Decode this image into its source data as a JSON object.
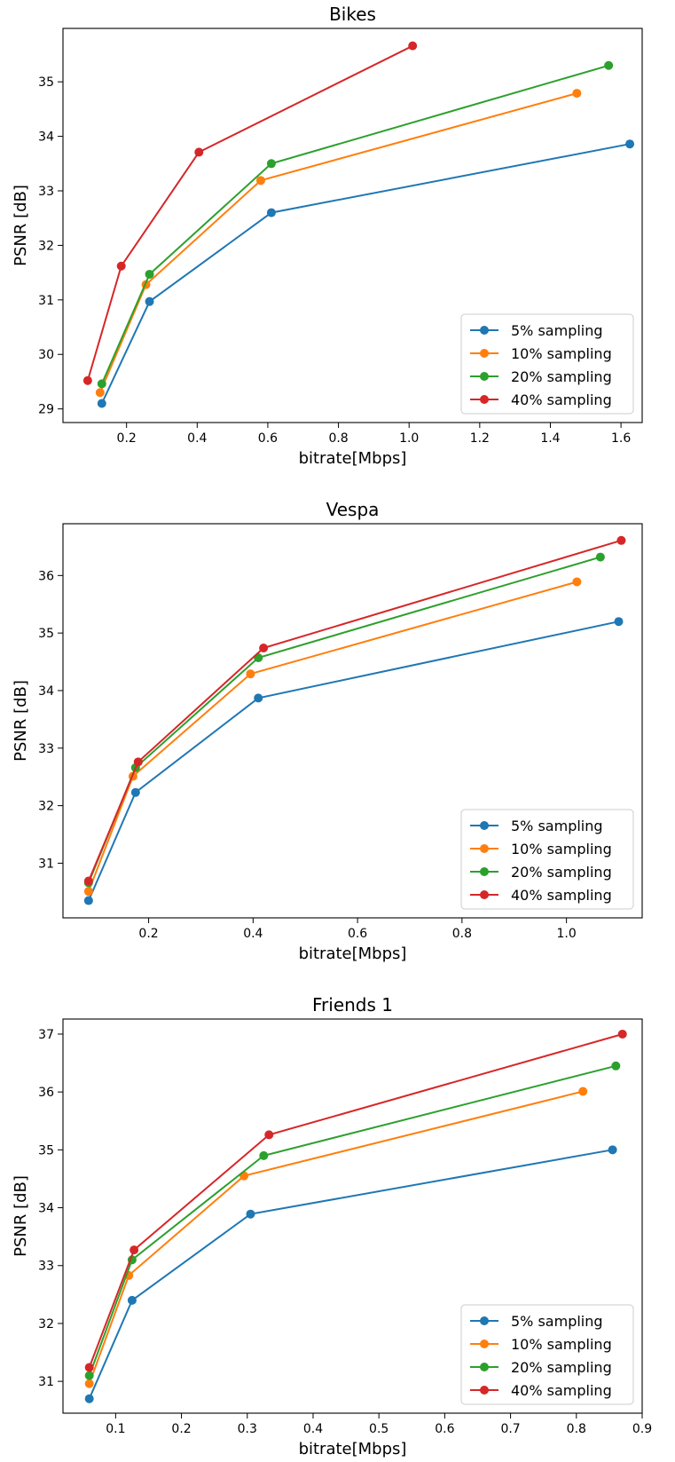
{
  "colors": {
    "5% sampling": "#1f77b4",
    "10% sampling": "#ff7f0e",
    "20% sampling": "#2ca02c",
    "40% sampling": "#d62728"
  },
  "legend_placement": "lower-right",
  "chart_data": [
    {
      "type": "line",
      "title": "Bikes",
      "xlabel": "bitrate[Mbps]",
      "ylabel": "PSNR [dB]",
      "xlim": [
        0.02,
        1.66
      ],
      "ylim": [
        28.75,
        35.98
      ],
      "xticks": [
        0.2,
        0.4,
        0.6,
        0.8,
        1.0,
        1.2,
        1.4,
        1.6
      ],
      "xtick_labels": [
        "0.2",
        "0.4",
        "0.6",
        "0.8",
        "1.0",
        "1.2",
        "1.4",
        "1.6"
      ],
      "yticks": [
        29,
        30,
        31,
        32,
        33,
        34,
        35
      ],
      "ytick_labels": [
        "29",
        "30",
        "31",
        "32",
        "33",
        "34",
        "35"
      ],
      "grid": false,
      "series": [
        {
          "name": "5% sampling",
          "x": [
            0.13,
            0.265,
            0.61,
            1.625
          ],
          "y": [
            29.1,
            30.97,
            32.6,
            33.86
          ]
        },
        {
          "name": "10% sampling",
          "x": [
            0.125,
            0.255,
            0.58,
            1.475
          ],
          "y": [
            29.3,
            31.28,
            33.19,
            34.79
          ]
        },
        {
          "name": "20% sampling",
          "x": [
            0.13,
            0.265,
            0.61,
            1.565
          ],
          "y": [
            29.46,
            31.47,
            33.5,
            35.3
          ]
        },
        {
          "name": "40% sampling",
          "x": [
            0.09,
            0.185,
            0.405,
            1.01
          ],
          "y": [
            29.52,
            31.62,
            33.71,
            35.66
          ]
        }
      ]
    },
    {
      "type": "line",
      "title": "Vespa",
      "xlabel": "bitrate[Mbps]",
      "ylabel": "PSNR [dB]",
      "xlim": [
        0.036,
        1.145
      ],
      "ylim": [
        30.05,
        36.9
      ],
      "xticks": [
        0.2,
        0.4,
        0.6,
        0.8,
        1.0
      ],
      "xtick_labels": [
        "0.2",
        "0.4",
        "0.6",
        "0.8",
        "1.0"
      ],
      "yticks": [
        31,
        32,
        33,
        34,
        35,
        36
      ],
      "ytick_labels": [
        "31",
        "32",
        "33",
        "34",
        "35",
        "36"
      ],
      "grid": false,
      "series": [
        {
          "name": "5% sampling",
          "x": [
            0.085,
            0.175,
            0.41,
            1.1
          ],
          "y": [
            30.35,
            32.23,
            33.87,
            35.2
          ]
        },
        {
          "name": "10% sampling",
          "x": [
            0.085,
            0.17,
            0.395,
            1.02
          ],
          "y": [
            30.51,
            32.51,
            34.29,
            35.89
          ]
        },
        {
          "name": "20% sampling",
          "x": [
            0.085,
            0.175,
            0.41,
            1.065
          ],
          "y": [
            30.66,
            32.66,
            34.57,
            36.32
          ]
        },
        {
          "name": "40% sampling",
          "x": [
            0.085,
            0.18,
            0.42,
            1.105
          ],
          "y": [
            30.69,
            32.76,
            34.74,
            36.61
          ]
        }
      ]
    },
    {
      "type": "line",
      "title": "Friends 1",
      "xlabel": "bitrate[Mbps]",
      "ylabel": "PSNR [dB]",
      "xlim": [
        0.02,
        0.9
      ],
      "ylim": [
        30.45,
        37.26
      ],
      "xticks": [
        0.1,
        0.2,
        0.3,
        0.4,
        0.5,
        0.6,
        0.7,
        0.8,
        0.9
      ],
      "xtick_labels": [
        "0.1",
        "0.2",
        "0.3",
        "0.4",
        "0.5",
        "0.6",
        "0.7",
        "0.8",
        "0.9"
      ],
      "yticks": [
        31,
        32,
        33,
        34,
        35,
        36,
        37
      ],
      "ytick_labels": [
        "31",
        "32",
        "33",
        "34",
        "35",
        "36",
        "37"
      ],
      "grid": false,
      "series": [
        {
          "name": "5% sampling",
          "x": [
            0.06,
            0.125,
            0.305,
            0.855
          ],
          "y": [
            30.7,
            32.4,
            33.89,
            35.0
          ]
        },
        {
          "name": "10% sampling",
          "x": [
            0.06,
            0.12,
            0.295,
            0.81
          ],
          "y": [
            30.96,
            32.83,
            34.55,
            36.01
          ]
        },
        {
          "name": "20% sampling",
          "x": [
            0.06,
            0.125,
            0.325,
            0.86
          ],
          "y": [
            31.1,
            33.1,
            34.9,
            36.45
          ]
        },
        {
          "name": "40% sampling",
          "x": [
            0.06,
            0.128,
            0.333,
            0.87
          ],
          "y": [
            31.24,
            33.27,
            35.26,
            37.0
          ]
        }
      ]
    }
  ]
}
